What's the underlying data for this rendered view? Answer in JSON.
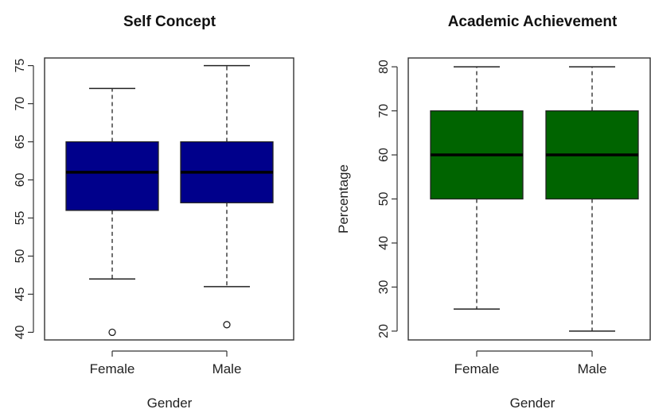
{
  "chart_data": [
    {
      "type": "box",
      "title": "Self Concept",
      "xlabel": "Gender",
      "ylabel": "",
      "ylim": [
        39,
        76
      ],
      "yticks": [
        40,
        45,
        50,
        55,
        60,
        65,
        70,
        75
      ],
      "categories": [
        "Female",
        "Male"
      ],
      "color": "#00008b",
      "boxes": [
        {
          "name": "Female",
          "whisker_low": 47,
          "q1": 56,
          "median": 61,
          "q3": 65,
          "whisker_high": 72,
          "outliers": [
            40
          ]
        },
        {
          "name": "Male",
          "whisker_low": 46,
          "q1": 57,
          "median": 61,
          "q3": 65,
          "whisker_high": 75,
          "outliers": [
            41
          ]
        }
      ]
    },
    {
      "type": "box",
      "title": "Academic Achievement",
      "xlabel": "Gender",
      "ylabel": "Percentage",
      "ylim": [
        18,
        82
      ],
      "yticks": [
        20,
        30,
        40,
        50,
        60,
        70,
        80
      ],
      "categories": [
        "Female",
        "Male"
      ],
      "color": "#006400",
      "boxes": [
        {
          "name": "Female",
          "whisker_low": 25,
          "q1": 50,
          "median": 60,
          "q3": 70,
          "whisker_high": 80,
          "outliers": []
        },
        {
          "name": "Male",
          "whisker_low": 20,
          "q1": 50,
          "median": 60,
          "q3": 70,
          "whisker_high": 80,
          "outliers": []
        }
      ]
    }
  ]
}
